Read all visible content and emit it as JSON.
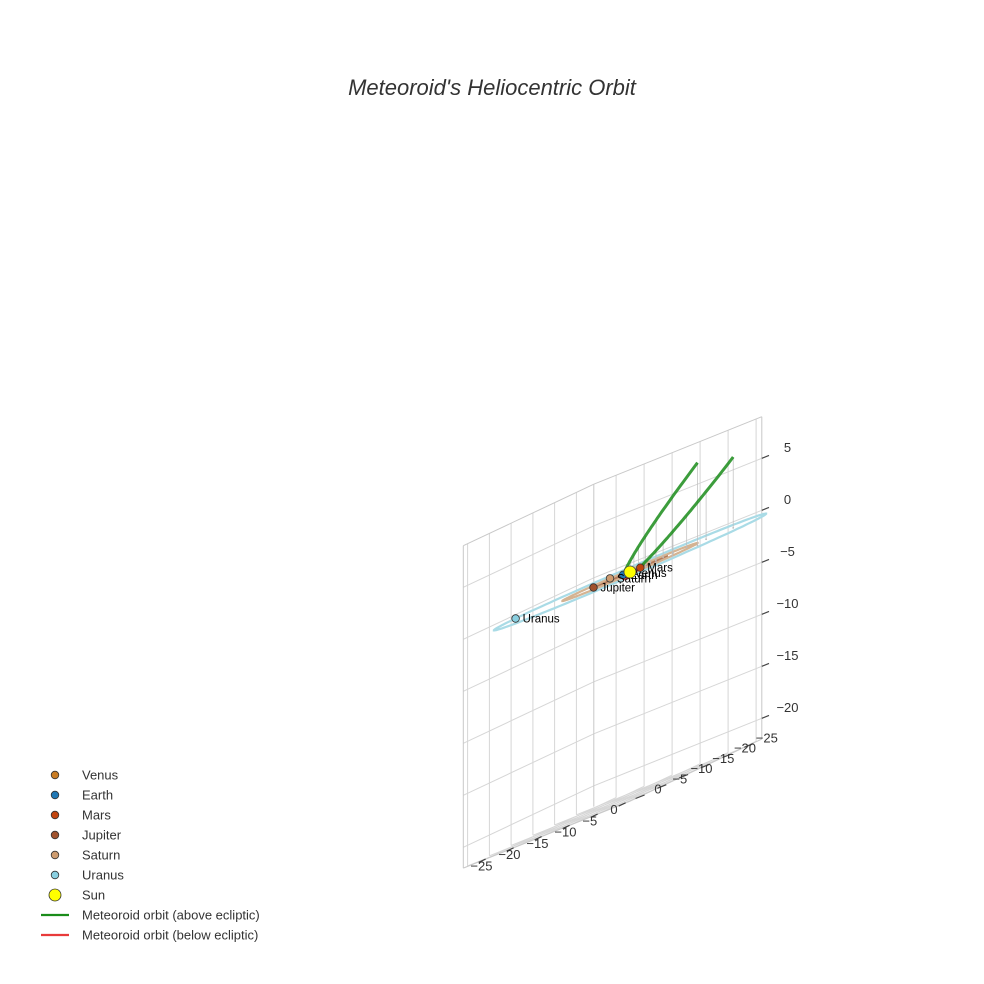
{
  "chart_data": {
    "type": "scatter3d",
    "title": "Meteoroid's Heliocentric Orbit",
    "axes": {
      "x": {
        "label": "",
        "range": [
          -29,
          1
        ],
        "ticks": [
          -25,
          -20,
          -15,
          -10,
          -5,
          0
        ],
        "tick_labels": [
          "−25",
          "−20",
          "−15",
          "−10",
          "−5",
          "0"
        ]
      },
      "y": {
        "label": "",
        "range": [
          -29,
          1
        ],
        "ticks": [
          -25,
          -20,
          -15,
          -10,
          -5,
          0
        ],
        "tick_labels": [
          "−25",
          "−20",
          "−15",
          "−10",
          "−5",
          "0"
        ]
      },
      "z": {
        "label": "",
        "range": [
          -22,
          9
        ],
        "ticks": [
          -20,
          -15,
          -10,
          -5,
          0,
          5
        ],
        "tick_labels": [
          "−20",
          "−15",
          "−10",
          "−5",
          "0",
          "5"
        ]
      },
      "grid": true
    },
    "planets": [
      {
        "name": "Venus",
        "color": "#c87b22",
        "a": 0.72,
        "phase_deg": 10,
        "label": "Venus"
      },
      {
        "name": "Earth",
        "color": "#1f77b4",
        "a": 1.0,
        "phase_deg": 290,
        "label": "Earth"
      },
      {
        "name": "Mars",
        "color": "#c1440e",
        "a": 1.52,
        "phase_deg": 110,
        "label": "Mars"
      },
      {
        "name": "Jupiter",
        "color": "#a0522d",
        "a": 5.2,
        "phase_deg": 300,
        "label": "Jupiter"
      },
      {
        "name": "Saturn",
        "color": "#cd9b6f",
        "a": 9.54,
        "phase_deg": 235,
        "label": "Saturn"
      },
      {
        "name": "Uranus",
        "color": "#89cfe0",
        "a": 19.2,
        "phase_deg": 275,
        "label": "Uranus"
      }
    ],
    "orbit_colors": {
      "Venus": "#c8a86b",
      "Earth": "#5aa0d0",
      "Mars": "#d4784a",
      "Jupiter": "#b27a5a",
      "Saturn": "#d4b392",
      "Uranus": "#a9dbe6"
    },
    "sun": {
      "name": "Sun",
      "color": "#ffff00",
      "x": 0,
      "y": 0,
      "z": 0
    },
    "meteoroid": {
      "name": "Meteoroid orbit",
      "a": 17.0,
      "e": 0.946,
      "inclination_deg": 30,
      "perihelion_argument_deg": 282,
      "ascending_node_deg": 0,
      "nu_range_deg": [
        -160,
        160
      ],
      "above_color": "#1a8c1a",
      "below_color": "#e83a3a"
    },
    "legend": {
      "position": "bottom-left",
      "entries": [
        {
          "label": "Venus",
          "kind": "marker",
          "color": "#c87b22"
        },
        {
          "label": "Earth",
          "kind": "marker",
          "color": "#1f77b4"
        },
        {
          "label": "Mars",
          "kind": "marker",
          "color": "#c1440e"
        },
        {
          "label": "Jupiter",
          "kind": "marker",
          "color": "#a0522d"
        },
        {
          "label": "Saturn",
          "kind": "marker",
          "color": "#cd9b6f"
        },
        {
          "label": "Uranus",
          "kind": "marker",
          "color": "#89cfe0"
        },
        {
          "label": "Sun",
          "kind": "marker-large",
          "color": "#ffff00"
        },
        {
          "label": "Meteoroid orbit (above ecliptic)",
          "kind": "line",
          "color": "#1a8c1a"
        },
        {
          "label": "Meteoroid orbit (below ecliptic)",
          "kind": "line",
          "color": "#e83a3a"
        }
      ]
    }
  }
}
